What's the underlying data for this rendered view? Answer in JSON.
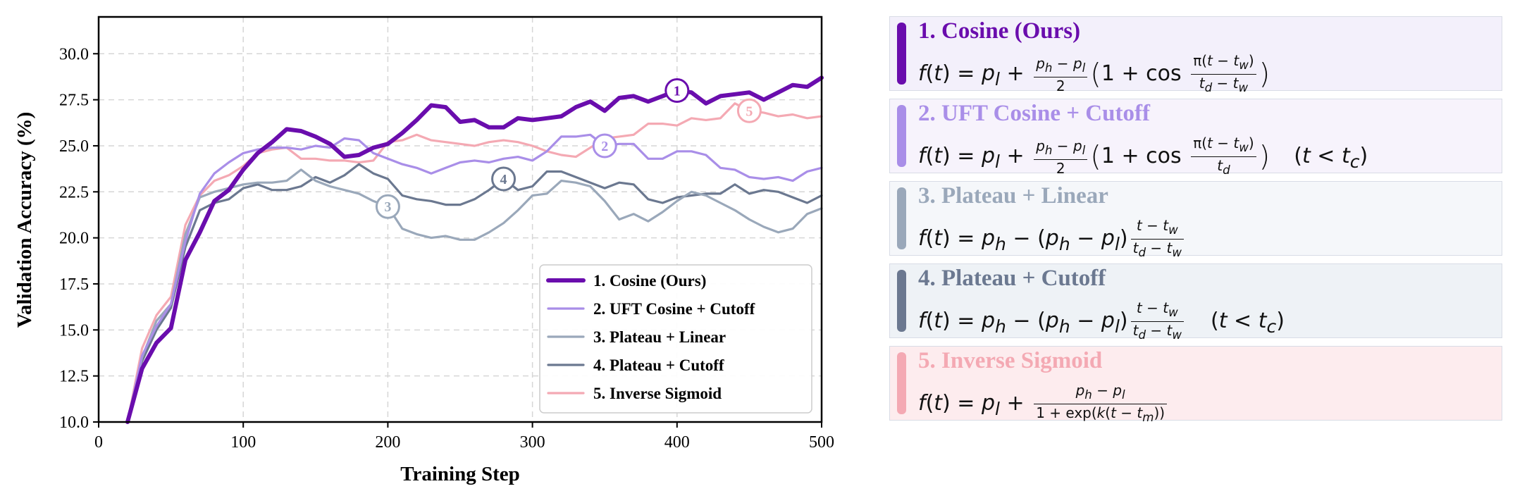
{
  "chart_data": {
    "type": "line",
    "title": "",
    "xlabel": "Training Step",
    "ylabel": "Validation Accuracy (%)",
    "xlim": [
      0,
      500
    ],
    "ylim": [
      10.0,
      32.0
    ],
    "xticks": [
      "0",
      "100",
      "200",
      "300",
      "400",
      "500"
    ],
    "xtick_values": [
      0,
      100,
      200,
      300,
      400,
      500
    ],
    "yticks": [
      "10.0",
      "12.5",
      "15.0",
      "17.5",
      "20.0",
      "22.5",
      "25.0",
      "27.5",
      "30.0"
    ],
    "ytick_values": [
      10.0,
      12.5,
      15.0,
      17.5,
      20.0,
      22.5,
      25.0,
      27.5,
      30.0
    ],
    "grid": true,
    "legend_position": "bottom-right",
    "series": [
      {
        "name": "1. Cosine (Ours)",
        "color": "#6a0dad",
        "marker": "1",
        "marker_x": 400,
        "x": [
          20,
          30,
          40,
          50,
          60,
          70,
          80,
          90,
          100,
          110,
          120,
          130,
          140,
          150,
          160,
          170,
          180,
          190,
          200,
          210,
          220,
          230,
          240,
          250,
          260,
          270,
          280,
          290,
          300,
          310,
          320,
          330,
          340,
          350,
          360,
          370,
          380,
          390,
          400,
          410,
          420,
          430,
          440,
          450,
          460,
          470,
          480,
          490,
          500
        ],
        "values": [
          10.0,
          12.9,
          14.3,
          15.1,
          18.8,
          20.3,
          22.0,
          22.6,
          23.7,
          24.6,
          25.2,
          25.9,
          25.8,
          25.5,
          25.1,
          24.4,
          24.5,
          24.9,
          25.1,
          25.7,
          26.4,
          27.2,
          27.1,
          26.3,
          26.4,
          26.0,
          26.0,
          26.5,
          26.4,
          26.5,
          26.6,
          27.1,
          27.4,
          26.9,
          27.6,
          27.7,
          27.4,
          27.7,
          28.0,
          27.9,
          27.3,
          27.7,
          27.8,
          27.9,
          27.5,
          27.9,
          28.3,
          28.2,
          28.7
        ]
      },
      {
        "name": "2. UFT Cosine + Cutoff",
        "color": "#a98ee8",
        "marker": "2",
        "marker_x": 350,
        "x": [
          20,
          30,
          40,
          50,
          60,
          70,
          80,
          90,
          100,
          110,
          120,
          130,
          140,
          150,
          160,
          170,
          180,
          190,
          200,
          210,
          220,
          230,
          240,
          250,
          260,
          270,
          280,
          290,
          300,
          310,
          320,
          330,
          340,
          350,
          360,
          370,
          380,
          390,
          400,
          410,
          420,
          430,
          440,
          450,
          460,
          470,
          480,
          490,
          500
        ],
        "values": [
          10.0,
          13.6,
          15.2,
          16.4,
          19.8,
          22.4,
          23.5,
          24.1,
          24.6,
          24.8,
          24.9,
          24.9,
          24.8,
          25.0,
          24.9,
          25.4,
          25.3,
          24.6,
          24.3,
          24.0,
          23.8,
          23.5,
          23.8,
          24.1,
          24.2,
          24.1,
          24.3,
          24.4,
          24.2,
          24.7,
          25.5,
          25.5,
          25.6,
          25.0,
          25.1,
          25.1,
          24.3,
          24.3,
          24.7,
          24.7,
          24.5,
          23.8,
          23.7,
          23.3,
          23.2,
          23.3,
          23.1,
          23.6,
          23.8
        ]
      },
      {
        "name": "3. Plateau + Linear",
        "color": "#9aa8ba",
        "marker": "3",
        "marker_x": 200,
        "x": [
          20,
          30,
          40,
          50,
          60,
          70,
          80,
          90,
          100,
          110,
          120,
          130,
          140,
          150,
          160,
          170,
          180,
          190,
          200,
          210,
          220,
          230,
          240,
          250,
          260,
          270,
          280,
          290,
          300,
          310,
          320,
          330,
          340,
          350,
          360,
          370,
          380,
          390,
          400,
          410,
          420,
          430,
          440,
          450,
          460,
          470,
          480,
          490,
          500
        ],
        "values": [
          10.0,
          13.5,
          15.5,
          16.4,
          20.2,
          22.2,
          22.5,
          22.7,
          22.9,
          23.0,
          23.0,
          23.1,
          23.7,
          23.1,
          22.8,
          22.6,
          22.4,
          22.0,
          21.7,
          20.5,
          20.2,
          20.0,
          20.1,
          19.9,
          19.9,
          20.3,
          20.8,
          21.5,
          22.3,
          22.4,
          23.1,
          23.0,
          22.8,
          22.0,
          21.0,
          21.3,
          20.9,
          21.4,
          22.0,
          22.5,
          22.3,
          21.9,
          21.5,
          21.0,
          20.6,
          20.3,
          20.5,
          21.3,
          21.6
        ]
      },
      {
        "name": "4. Plateau + Cutoff",
        "color": "#6b7890",
        "marker": "4",
        "marker_x": 280,
        "x": [
          20,
          30,
          40,
          50,
          60,
          70,
          80,
          90,
          100,
          110,
          120,
          130,
          140,
          150,
          160,
          170,
          180,
          190,
          200,
          210,
          220,
          230,
          240,
          250,
          260,
          270,
          280,
          290,
          300,
          310,
          320,
          330,
          340,
          350,
          360,
          370,
          380,
          390,
          400,
          410,
          420,
          430,
          440,
          450,
          460,
          470,
          480,
          490,
          500
        ],
        "values": [
          10.0,
          13.3,
          15.0,
          16.2,
          19.5,
          21.5,
          21.9,
          22.1,
          22.7,
          22.9,
          22.6,
          22.6,
          22.8,
          23.3,
          23.0,
          23.4,
          24.0,
          23.5,
          23.2,
          22.3,
          22.1,
          22.0,
          21.8,
          21.8,
          22.1,
          22.6,
          23.2,
          22.6,
          22.8,
          23.6,
          23.6,
          23.3,
          23.0,
          22.7,
          23.0,
          22.9,
          22.1,
          21.9,
          22.2,
          22.3,
          22.4,
          22.4,
          22.9,
          22.4,
          22.6,
          22.5,
          22.2,
          21.9,
          22.3
        ]
      },
      {
        "name": "5. Inverse Sigmoid",
        "color": "#f4a9b3",
        "marker": "5",
        "marker_x": 450,
        "x": [
          20,
          30,
          40,
          50,
          60,
          70,
          80,
          90,
          100,
          110,
          120,
          130,
          140,
          150,
          160,
          170,
          180,
          190,
          200,
          210,
          220,
          230,
          240,
          250,
          260,
          270,
          280,
          290,
          300,
          310,
          320,
          330,
          340,
          350,
          360,
          370,
          380,
          390,
          400,
          410,
          420,
          430,
          440,
          450,
          460,
          470,
          480,
          490,
          500
        ],
        "values": [
          10.0,
          14.0,
          15.8,
          16.8,
          20.7,
          22.3,
          23.1,
          23.4,
          23.9,
          24.6,
          24.8,
          24.9,
          24.3,
          24.3,
          24.2,
          24.2,
          24.1,
          24.2,
          25.2,
          25.3,
          25.6,
          25.3,
          25.2,
          25.1,
          25.0,
          25.2,
          25.3,
          25.2,
          25.0,
          24.7,
          24.5,
          24.4,
          24.9,
          25.4,
          25.5,
          25.6,
          26.2,
          26.2,
          26.1,
          26.5,
          26.4,
          26.5,
          27.3,
          26.9,
          26.8,
          26.6,
          26.7,
          26.5,
          26.6
        ]
      }
    ]
  },
  "panels": [
    {
      "title": "1. Cosine (Ours)",
      "color": "#6a0dad",
      "bg": "#f3f0fb"
    },
    {
      "title": "2. UFT Cosine + Cutoff",
      "color": "#a98ee8",
      "bg": "#f7f3fc"
    },
    {
      "title": "3. Plateau + Linear",
      "color": "#9aa8ba",
      "bg": "#f5f7fa"
    },
    {
      "title": "4. Plateau + Cutoff",
      "color": "#6b7890",
      "bg": "#eef2f6"
    },
    {
      "title": "5. Inverse Sigmoid",
      "color": "#f4a9b3",
      "bg": "#fdecee"
    }
  ]
}
